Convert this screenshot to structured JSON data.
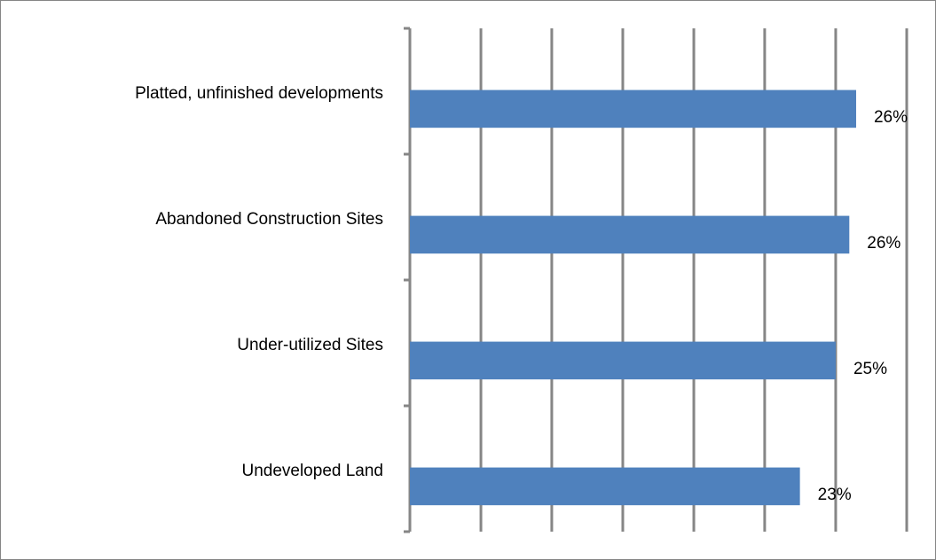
{
  "chart_data": {
    "type": "bar",
    "orientation": "horizontal",
    "categories": [
      "Platted, unfinished developments",
      "Abandoned Construction Sites",
      "Under-utilized Sites",
      "Undeveloped Land"
    ],
    "values": [
      26.2,
      25.8,
      25,
      22.9
    ],
    "value_labels": [
      "26%",
      "26%",
      "25%",
      "23%"
    ],
    "color": "#4f81bd",
    "xlim": [
      0,
      29.17
    ],
    "xticks": [
      0,
      4.17,
      8.33,
      12.5,
      16.67,
      20.83,
      25,
      29.17
    ],
    "grid": true
  }
}
